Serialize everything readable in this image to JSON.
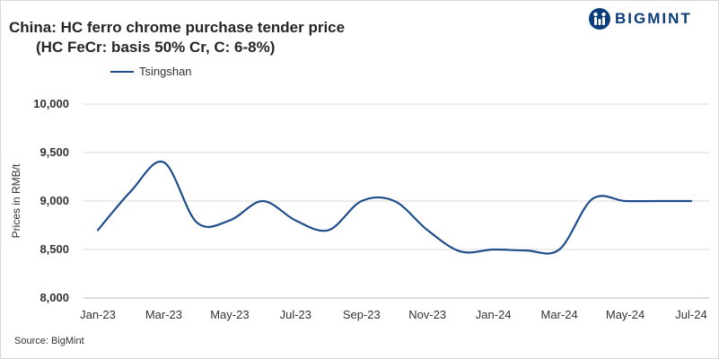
{
  "header": {
    "title_line1": "China: HC ferro chrome purchase tender price",
    "title_line2": "(HC FeCr: basis 50% Cr, C: 6-8%)",
    "logo_text": "BIGMINT"
  },
  "footer": {
    "source": "Source: BigMint"
  },
  "colors": {
    "series": "#1f4e8c",
    "grid": "#d9d9d9",
    "logo": "#0a3d7a"
  },
  "chart_data": {
    "type": "line",
    "title": "China: HC ferro chrome purchase tender price",
    "subtitle": "(HC FeCr: basis 50% Cr, C: 6-8%)",
    "ylabel": "Prices in RMB/t",
    "xlabel": "",
    "ylim": [
      8000,
      10000
    ],
    "yticks": [
      8000,
      8500,
      9000,
      9500,
      10000
    ],
    "ytick_labels": [
      "8,000",
      "8,500",
      "9,000",
      "9,500",
      "10,000"
    ],
    "categories": [
      "Jan-23",
      "Feb-23",
      "Mar-23",
      "Apr-23",
      "May-23",
      "Jun-23",
      "Jul-23",
      "Aug-23",
      "Sep-23",
      "Oct-23",
      "Nov-23",
      "Dec-23",
      "Jan-24",
      "Feb-24",
      "Mar-24",
      "Apr-24",
      "May-24",
      "Jun-24",
      "Jul-24"
    ],
    "xtick_labels": [
      "Jan-23",
      "Mar-23",
      "May-23",
      "Jul-23",
      "Sep-23",
      "Nov-23",
      "Jan-24",
      "Mar-24",
      "May-24",
      "Jul-24"
    ],
    "legend_position": "top-left",
    "grid": true,
    "series": [
      {
        "name": "Tsingshan",
        "values": [
          8700,
          9100,
          9400,
          8780,
          8800,
          9000,
          8800,
          8700,
          9000,
          9000,
          8700,
          8480,
          8500,
          8490,
          8500,
          9020,
          9000,
          9000,
          9000
        ]
      }
    ]
  }
}
